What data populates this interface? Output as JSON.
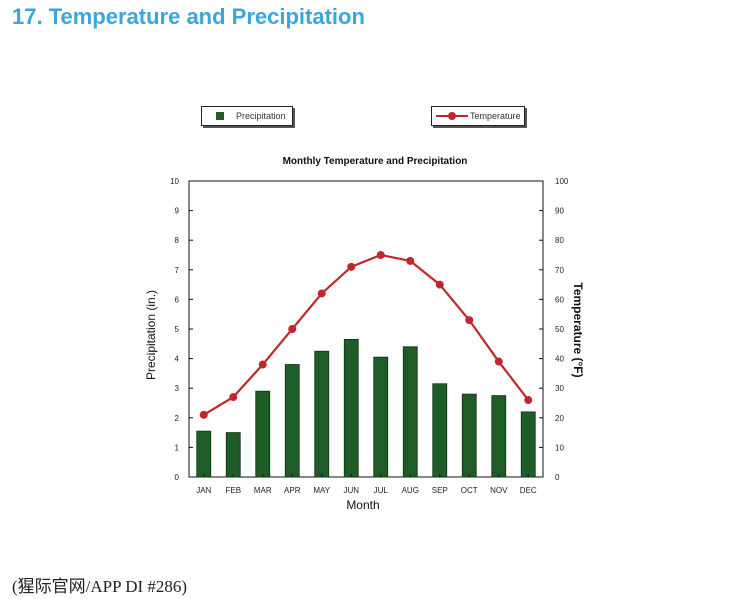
{
  "page": {
    "heading": "17. Temperature and Precipitation",
    "footer": "(猩际官网/APP DI #286)"
  },
  "chart_data": {
    "type": "bar",
    "title": "Monthly Temperature and Precipitation",
    "xlabel": "Month",
    "ylabel": "Precipitation (in.)",
    "y2label": "Temperature (°F)",
    "ylim": [
      0,
      10
    ],
    "y2lim": [
      0,
      100
    ],
    "yticks": [
      "0",
      "1",
      "2",
      "3",
      "4",
      "5",
      "6",
      "7",
      "8",
      "9",
      "10"
    ],
    "y2ticks": [
      "0",
      "10",
      "20",
      "30",
      "40",
      "50",
      "60",
      "70",
      "80",
      "90",
      "100"
    ],
    "grid": false,
    "categories": [
      "JAN",
      "FEB",
      "MAR",
      "APR",
      "MAY",
      "JUN",
      "JUL",
      "AUG",
      "SEP",
      "OCT",
      "NOV",
      "DEC"
    ],
    "series": [
      {
        "name": "Precipitation",
        "type": "bar",
        "axis": "left",
        "color": "#1f5c27",
        "values": [
          1.55,
          1.5,
          2.9,
          3.8,
          4.25,
          4.65,
          4.05,
          4.4,
          3.15,
          2.8,
          2.75,
          2.2
        ]
      },
      {
        "name": "Temperature",
        "type": "line",
        "axis": "right",
        "color": "#c0272d",
        "values": [
          21,
          27,
          38,
          50,
          62,
          71,
          75,
          73,
          65,
          53,
          39,
          26
        ]
      }
    ],
    "legend": "top, outside plot"
  }
}
